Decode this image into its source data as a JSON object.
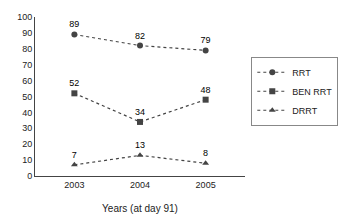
{
  "chart_data": {
    "type": "line",
    "xlabel": "Years (at day 91)",
    "x": [
      2003,
      2004,
      2005
    ],
    "series": [
      {
        "name": "RRT",
        "color": "#444444",
        "marker": "circle",
        "line_style": "dotted",
        "values": [
          89,
          82,
          79
        ]
      },
      {
        "name": "BEN RRT",
        "color": "#444444",
        "marker": "square",
        "line_style": "dotted",
        "values": [
          52,
          34,
          48
        ]
      },
      {
        "name": "DRRT",
        "color": "#444444",
        "marker": "triangle",
        "line_style": "dotted",
        "values": [
          7,
          13,
          8
        ]
      }
    ],
    "xlim": [
      2002.4,
      2005.6
    ],
    "xticks": [
      2003,
      2004,
      2005
    ],
    "ylim": [
      0,
      100
    ],
    "yticks": [
      0,
      10,
      20,
      30,
      40,
      50,
      60,
      70,
      80,
      90,
      100
    ],
    "grid": false,
    "legend": "right",
    "data_labels": true
  }
}
